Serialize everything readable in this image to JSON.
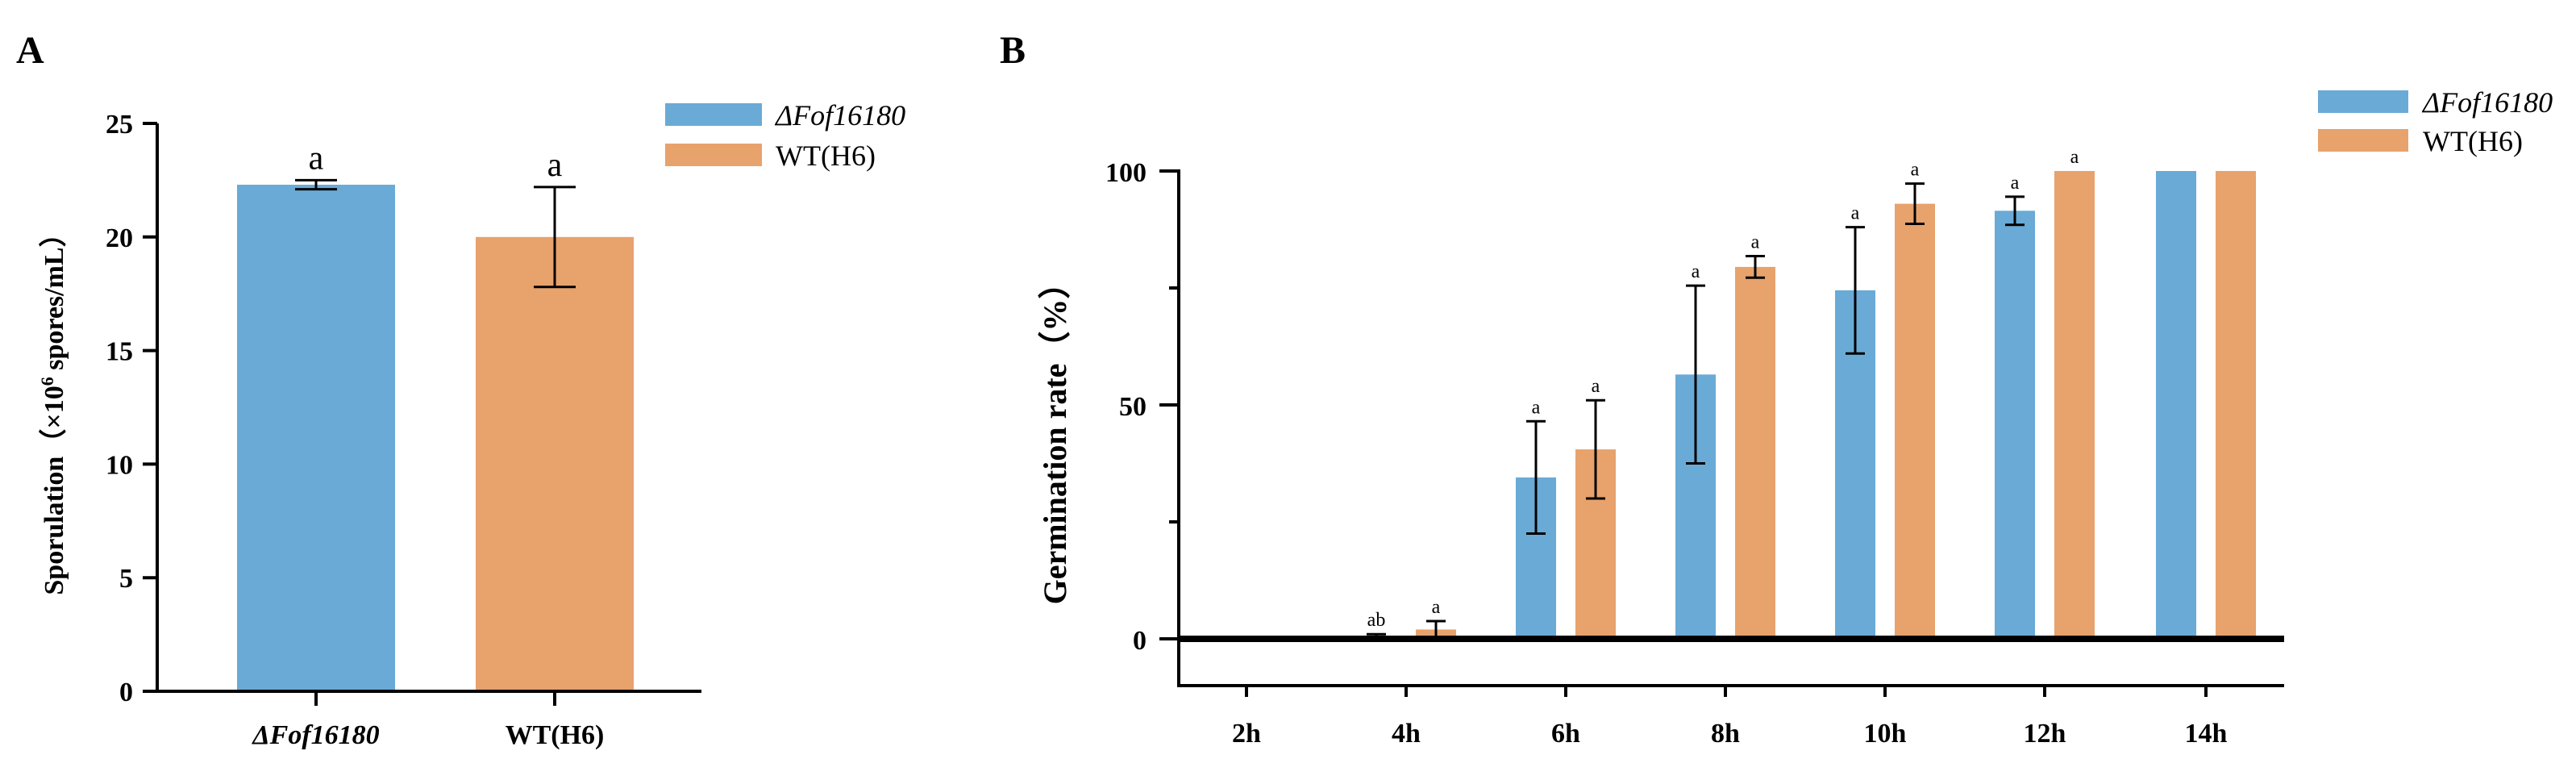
{
  "colors": {
    "blue": "#6aaad6",
    "orange": "#e8a26c",
    "axis": "#000000"
  },
  "chart_data": [
    {
      "panel": "A",
      "type": "bar",
      "title": "",
      "xlabel": "",
      "ylabel": "Sporulation（×10⁶ spores/mL）",
      "ylabel_parts": {
        "pre": "Sporulation（×10",
        "sup": "6",
        "post": " spores/mL）"
      },
      "ylim": [
        0,
        25
      ],
      "yticks": [
        "0",
        "5",
        "10",
        "15",
        "20",
        "25"
      ],
      "categories": [
        "ΔFof16180",
        "WT(H6)"
      ],
      "values": [
        22.3,
        20.0
      ],
      "errors": [
        0.2,
        2.2
      ],
      "bar_colors": [
        "#6aaad6",
        "#e8a26c"
      ],
      "significance": [
        "a",
        "a"
      ],
      "legend": [
        "ΔFof16180",
        "WT(H6)"
      ],
      "legend_position": "top-right"
    },
    {
      "panel": "B",
      "type": "bar",
      "title": "",
      "xlabel": "",
      "ylabel": "Germination rate（%）",
      "ylim": [
        -5,
        100
      ],
      "yticks": [
        "0",
        "50",
        "100"
      ],
      "categories": [
        "2h",
        "4h",
        "6h",
        "8h",
        "10h",
        "12h",
        "14h"
      ],
      "series": [
        {
          "name": "ΔFof16180",
          "color": "#6aaad6",
          "values": [
            0,
            0.5,
            34.5,
            56.5,
            74.5,
            91.5,
            100
          ],
          "errors": [
            0,
            0.5,
            12,
            19,
            13.5,
            3,
            0
          ],
          "significance": [
            "",
            "ab",
            "a",
            "a",
            "a",
            "a",
            ""
          ]
        },
        {
          "name": "WT(H6)",
          "color": "#e8a26c",
          "values": [
            0,
            2,
            40.5,
            79.5,
            93,
            100,
            100
          ],
          "errors": [
            0,
            1.8,
            10.5,
            2.3,
            4.3,
            0,
            0
          ],
          "significance": [
            "",
            "a",
            "a",
            "a",
            "a",
            "a",
            ""
          ]
        }
      ],
      "legend": [
        "ΔFof16180",
        "WT(H6)"
      ],
      "legend_position": "top-right"
    }
  ],
  "panels": {
    "a_letter": "A",
    "b_letter": "B"
  }
}
